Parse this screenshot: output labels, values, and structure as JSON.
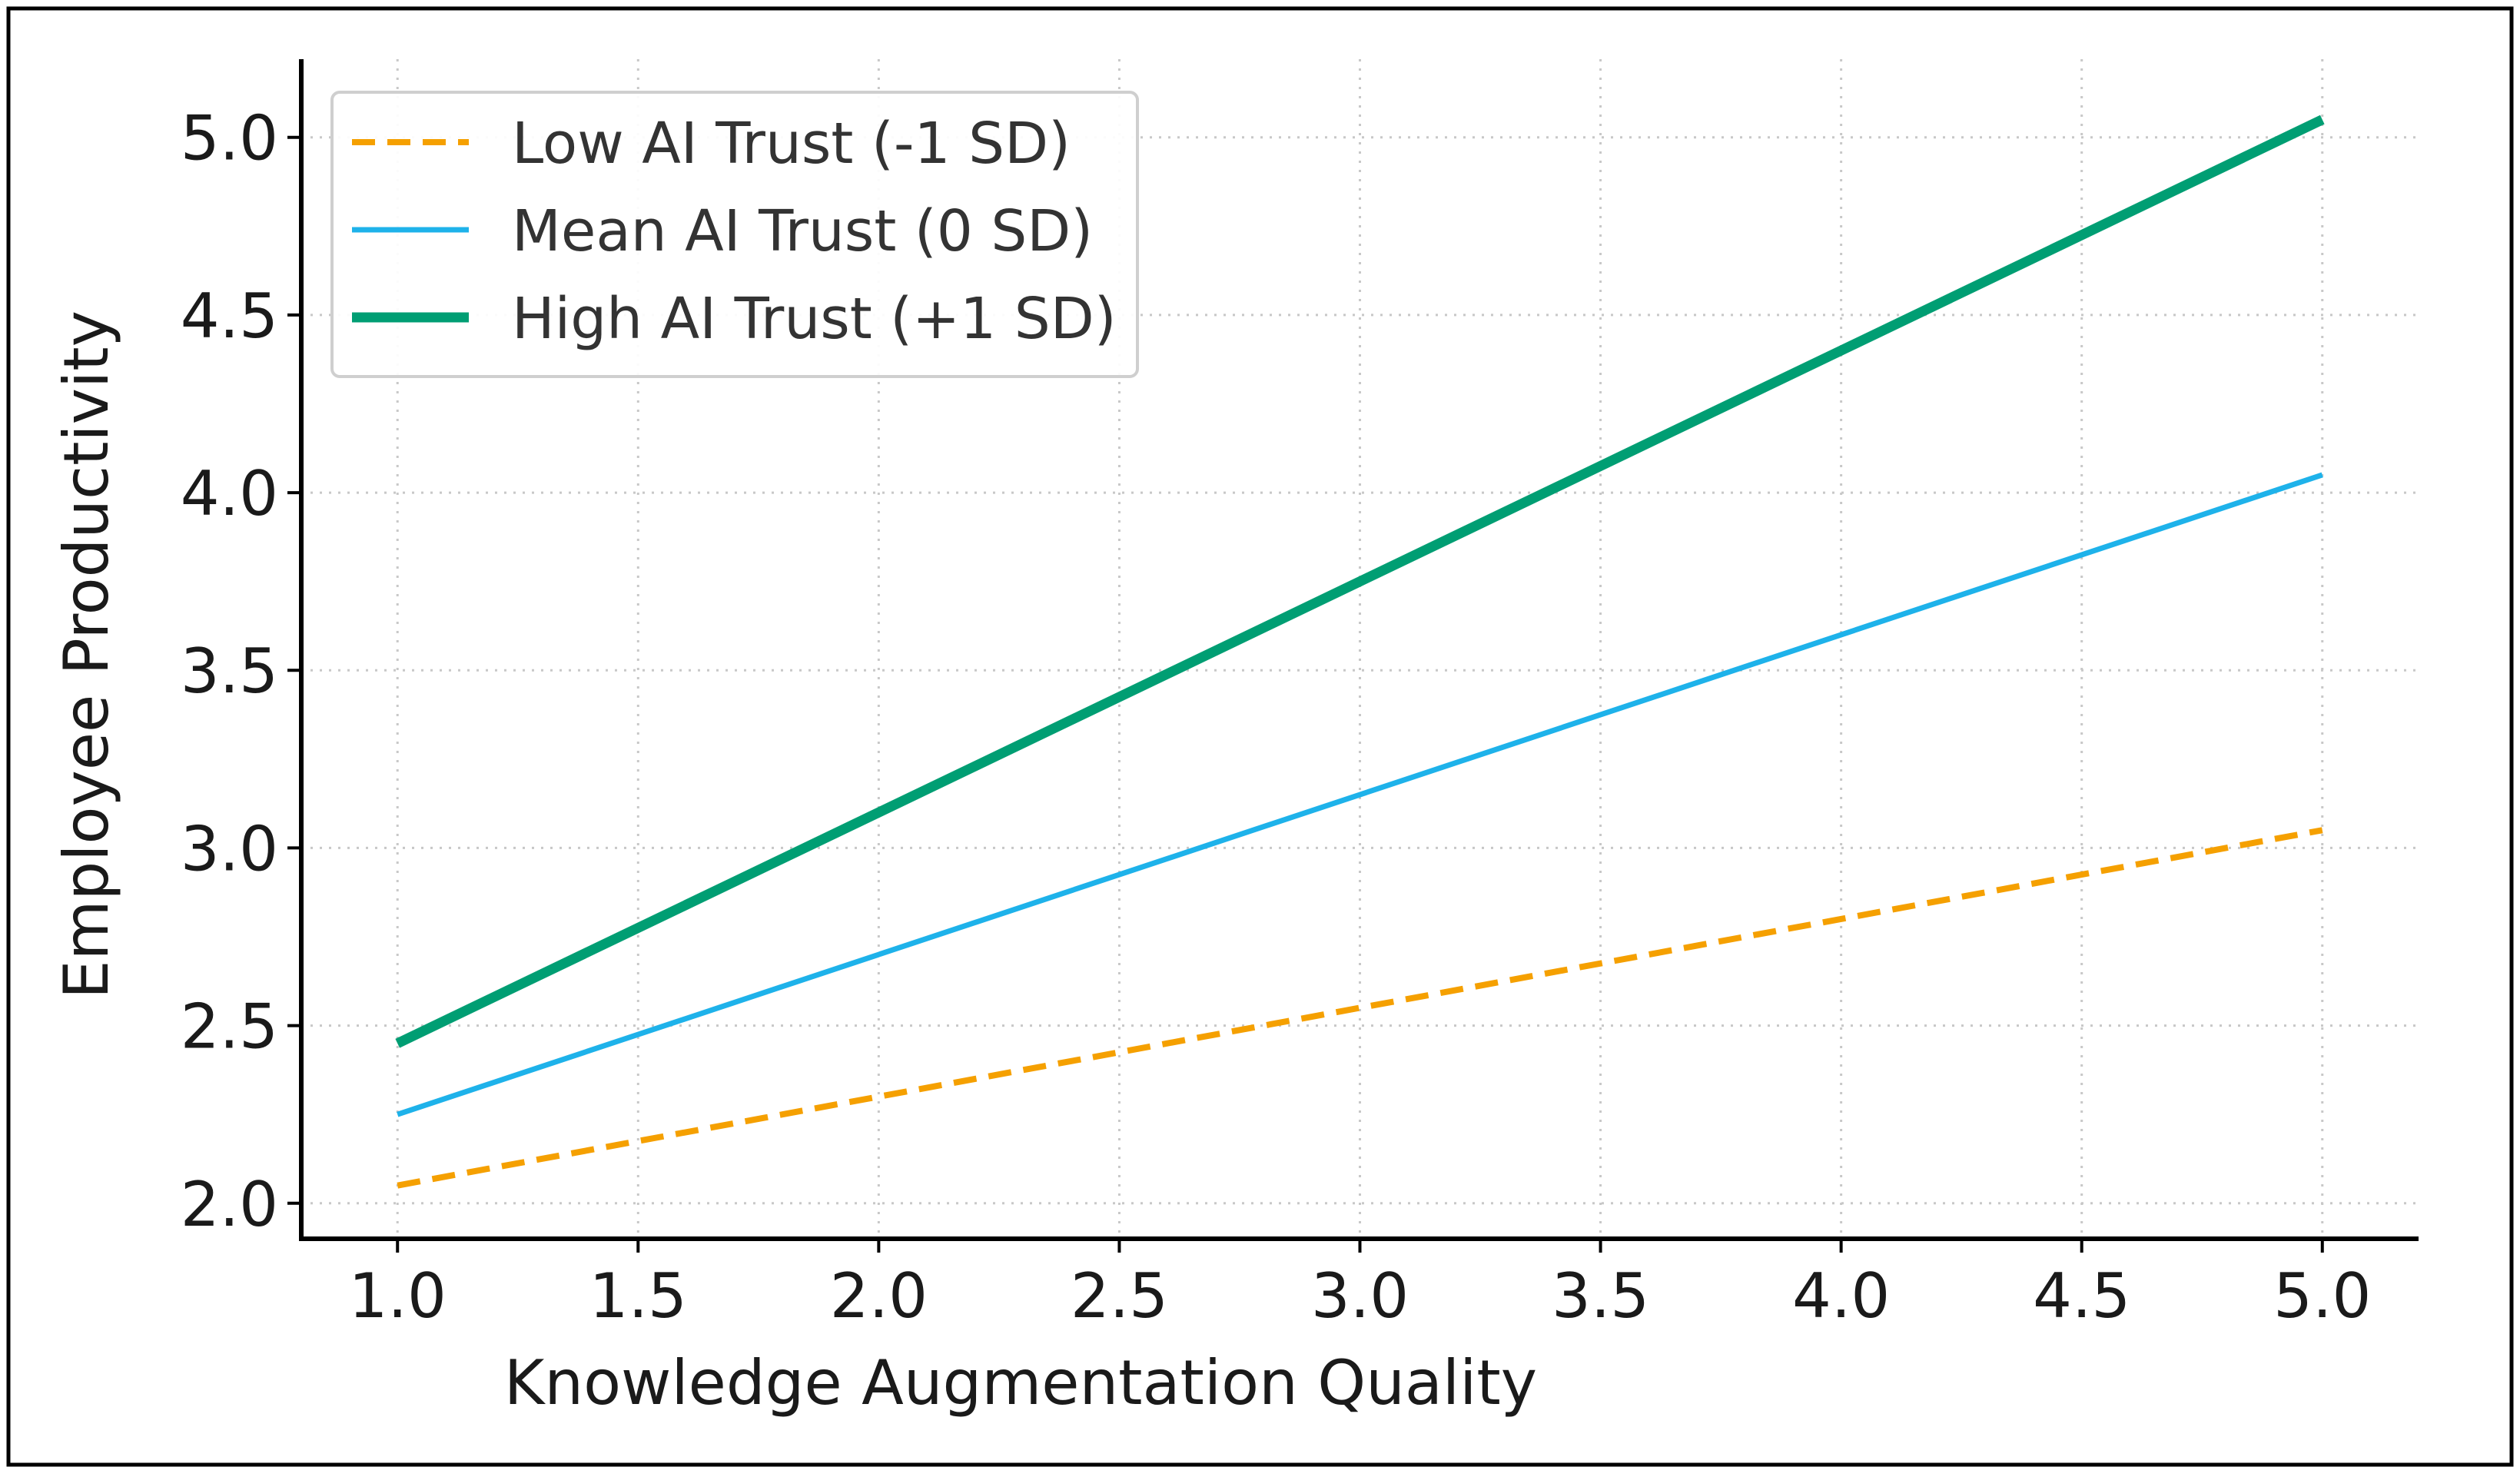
{
  "chart_data": {
    "type": "line",
    "title": "",
    "xlabel": "Knowledge Augmentation Quality",
    "ylabel": "Employee Productivity",
    "xlim": [
      0.8,
      5.2
    ],
    "ylim": [
      1.9,
      5.22
    ],
    "x_ticks": [
      1.0,
      1.5,
      2.0,
      2.5,
      3.0,
      3.5,
      4.0,
      4.5,
      5.0
    ],
    "x_tick_labels": [
      "1.0",
      "1.5",
      "2.0",
      "2.5",
      "3.0",
      "3.5",
      "4.0",
      "4.5",
      "5.0"
    ],
    "y_ticks": [
      2.0,
      2.5,
      3.0,
      3.5,
      4.0,
      4.5,
      5.0
    ],
    "y_tick_labels": [
      "2.0",
      "2.5",
      "3.0",
      "3.5",
      "4.0",
      "4.5",
      "5.0"
    ],
    "grid": true,
    "legend_position": "top-left",
    "x": [
      1.0,
      5.0
    ],
    "series": [
      {
        "name": "Low AI Trust (-1 SD)",
        "values": [
          2.05,
          3.05
        ],
        "color": "#f5a000",
        "style": "dashed"
      },
      {
        "name": "Mean AI Trust (0 SD)",
        "values": [
          2.25,
          4.05
        ],
        "color": "#1eb2ea",
        "style": "solid"
      },
      {
        "name": "High AI Trust (+1 SD)",
        "values": [
          2.45,
          5.05
        ],
        "color": "#009e73",
        "style": "solid-thick"
      }
    ]
  }
}
